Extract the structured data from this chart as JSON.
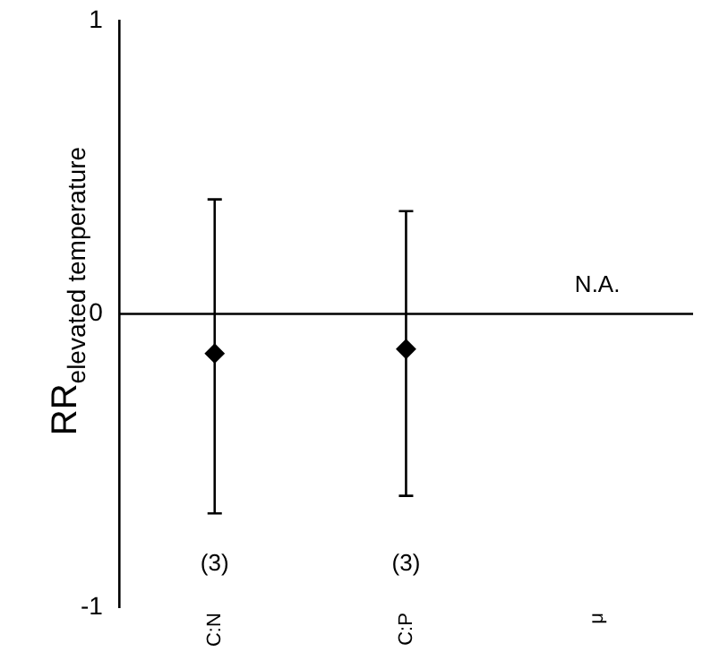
{
  "chart_data": {
    "type": "scatter",
    "ylabel": "RR$_{elevated temperature}$",
    "categories": [
      "C:N",
      "C:P",
      "μ"
    ],
    "series": [
      {
        "color": "#000000",
        "values": [
          -0.135,
          -0.12,
          null
        ],
        "errors": [
          [
            -0.68,
            0.39
          ],
          [
            -0.62,
            0.35
          ],
          null
        ]
      }
    ],
    "ylim": [
      -1,
      1
    ],
    "yticks": [
      -1,
      0,
      1
    ],
    "marker": "diamond",
    "grid": false,
    "legend": false,
    "ref_lines": [
      {
        "axis": "y",
        "value": 0,
        "color": "#000000"
      }
    ],
    "annotations": [
      "N.A.",
      "(3)",
      "(3)"
    ]
  }
}
